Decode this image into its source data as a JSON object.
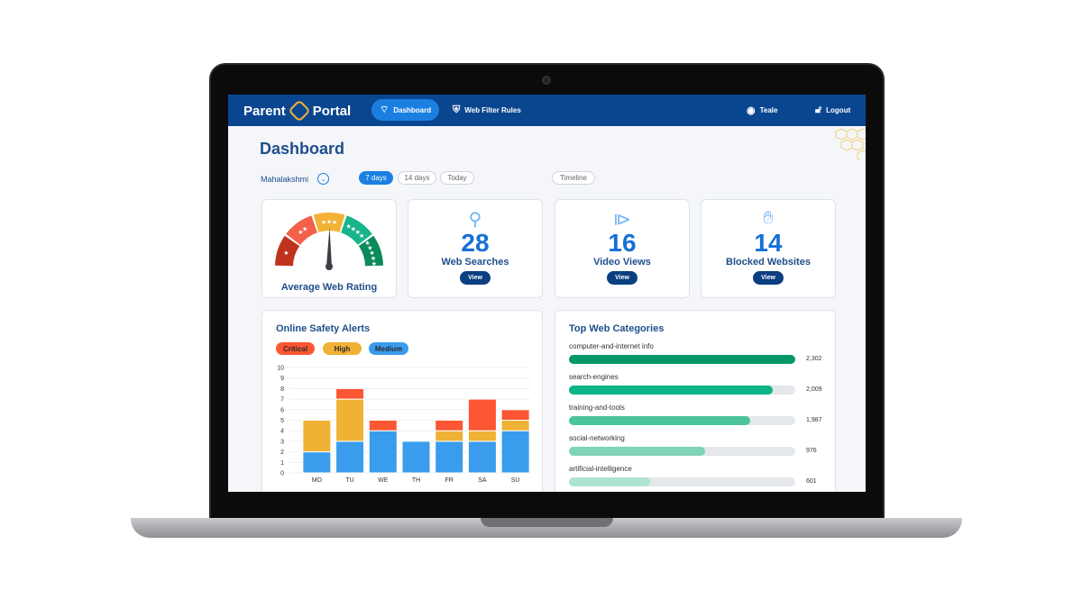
{
  "nav": {
    "logo_left": "Parent",
    "logo_right": "Portal",
    "dashboard": "Dashboard",
    "web_filter_rules": "Web Filter Rules",
    "user": "Teale",
    "logout": "Logout"
  },
  "page": {
    "title": "Dashboard",
    "child": "Mahalakshmi",
    "ranges": [
      "7 days",
      "14 days",
      "Today"
    ],
    "active_range": "7 days",
    "timeline": "Timeline"
  },
  "cards": {
    "rating": {
      "label": "Average Web Rating",
      "gauge_segments": [
        "#c0321d",
        "#f5604a",
        "#f2b233",
        "#17b58a",
        "#0b8a5a"
      ]
    },
    "searches": {
      "value": "28",
      "label": "Web Searches",
      "button": "View",
      "icon": "magnifier-icon"
    },
    "videos": {
      "value": "16",
      "label": "Video Views",
      "button": "View",
      "icon": "video-player-icon"
    },
    "blocked": {
      "value": "14",
      "label": "Blocked Websites",
      "button": "View",
      "icon": "blocked-hand-icon"
    }
  },
  "alerts": {
    "title": "Online Safety Alerts",
    "legend": [
      {
        "label": "Critical",
        "color": "#fc5632"
      },
      {
        "label": "High",
        "color": "#f0b235"
      },
      {
        "label": "Medium",
        "color": "#3a9ced"
      }
    ]
  },
  "chart_data": {
    "type": "bar",
    "stacked": true,
    "categories": [
      "MO",
      "TU",
      "WE",
      "TH",
      "FR",
      "SA",
      "SU"
    ],
    "ylim": [
      0,
      10
    ],
    "yticks": [
      0,
      1,
      2,
      3,
      4,
      5,
      6,
      7,
      8,
      9,
      10
    ],
    "grid": true,
    "series": [
      {
        "name": "Medium",
        "color": "#3a9ced",
        "values": [
          2,
          3,
          4,
          3,
          3,
          3,
          4
        ]
      },
      {
        "name": "High",
        "color": "#f0b235",
        "values": [
          3,
          4,
          0,
          0,
          1,
          1,
          1
        ]
      },
      {
        "name": "Critical",
        "color": "#fc5632",
        "values": [
          0,
          1,
          1,
          0,
          1,
          3,
          1
        ]
      }
    ]
  },
  "categories": {
    "title": "Top Web Categories",
    "items": [
      {
        "name": "computer-and-internet info",
        "value": "2,302",
        "fill": 1.0,
        "color": "#05976a"
      },
      {
        "name": "search-engines",
        "value": "2,009",
        "fill": 0.9,
        "color": "#0bb585"
      },
      {
        "name": "training-and-tools",
        "value": "1,987",
        "fill": 0.8,
        "color": "#4ac49b"
      },
      {
        "name": "social-networking",
        "value": "976",
        "fill": 0.6,
        "color": "#7fd4b6"
      },
      {
        "name": "artificial-intelligence",
        "value": "601",
        "fill": 0.36,
        "color": "#ade4d1"
      }
    ]
  }
}
